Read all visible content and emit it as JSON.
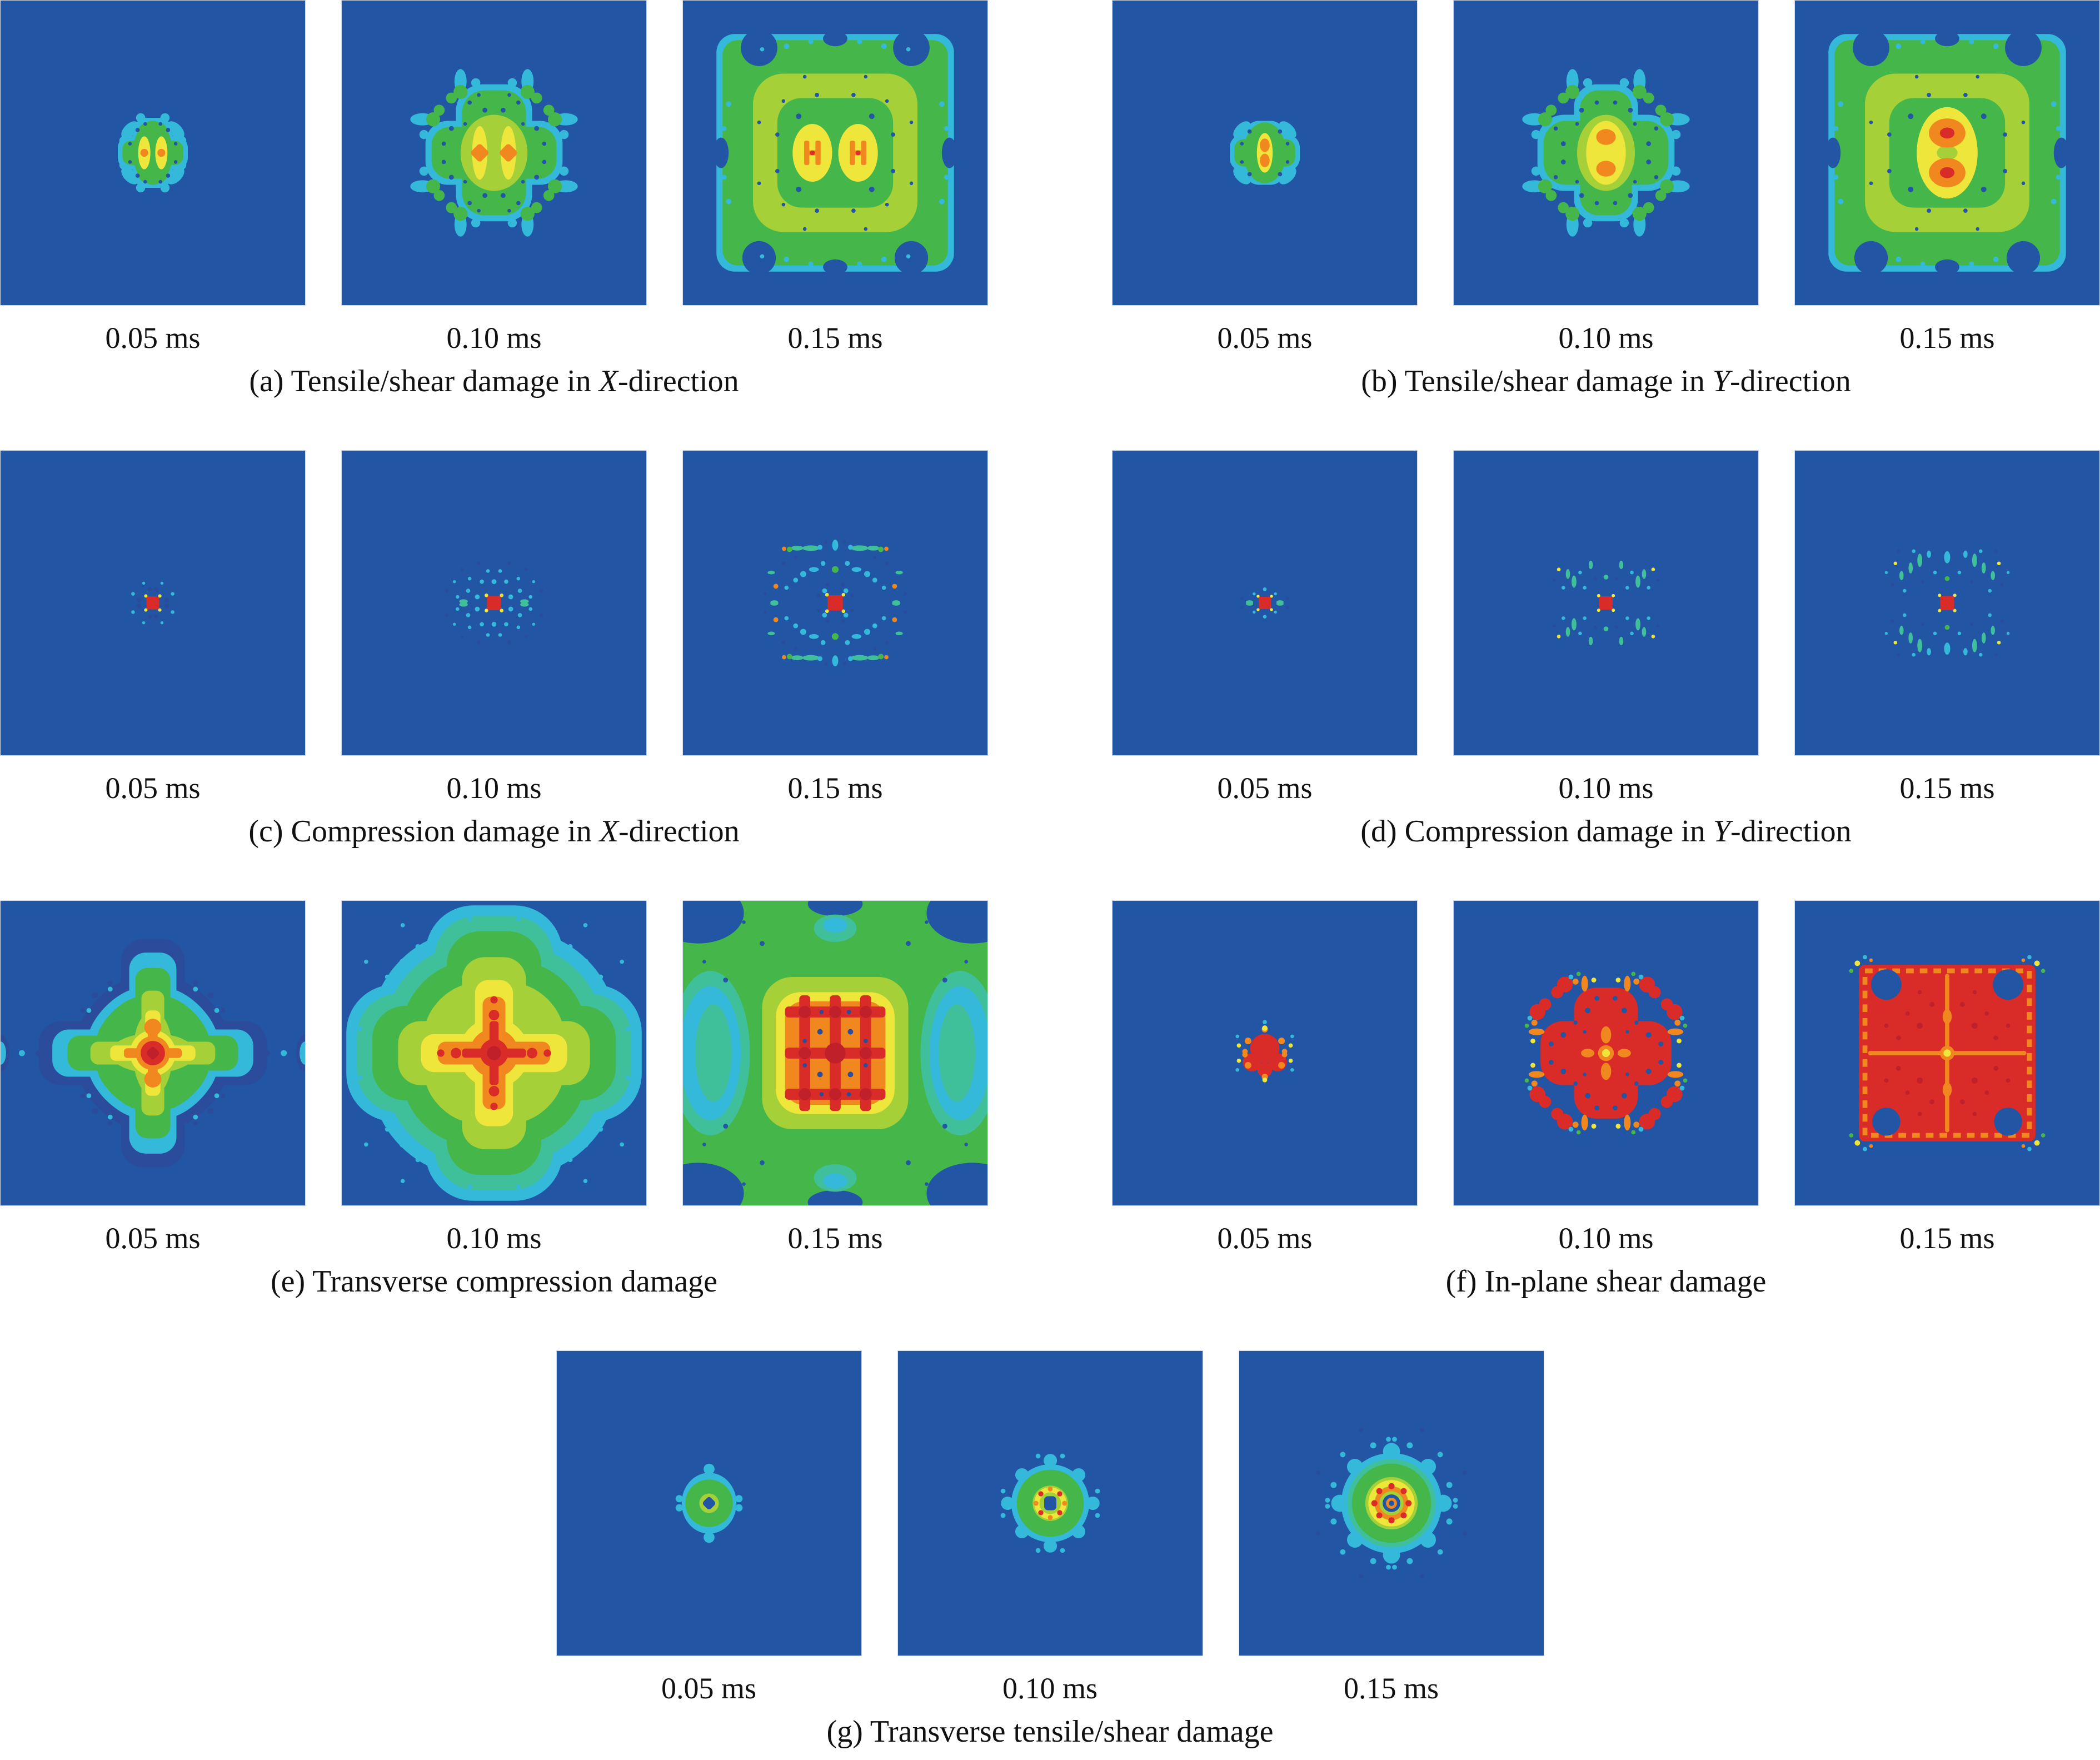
{
  "figure": {
    "times": [
      "0.05 ms",
      "0.10 ms",
      "0.15 ms"
    ],
    "groups": [
      {
        "id": "a",
        "caption_pre": "(a) Tensile/shear damage in ",
        "caption_em": "X",
        "caption_post": "-direction",
        "panels": [
          "a1",
          "a2",
          "a3"
        ]
      },
      {
        "id": "b",
        "caption_pre": "(b) Tensile/shear damage in ",
        "caption_em": "Y",
        "caption_post": "-direction",
        "panels": [
          "b1",
          "b2",
          "b3"
        ]
      },
      {
        "id": "c",
        "caption_pre": "(c) Compression damage in ",
        "caption_em": "X",
        "caption_post": "-direction",
        "panels": [
          "c1",
          "c2",
          "c3"
        ]
      },
      {
        "id": "d",
        "caption_pre": "(d) Compression damage in ",
        "caption_em": "Y",
        "caption_post": "-direction",
        "panels": [
          "d1",
          "d2",
          "d3"
        ]
      },
      {
        "id": "e",
        "caption_pre": "(e) Transverse compression damage",
        "caption_em": "",
        "caption_post": "",
        "panels": [
          "e1",
          "e2",
          "e3"
        ]
      },
      {
        "id": "f",
        "caption_pre": "(f) In-plane shear damage",
        "caption_em": "",
        "caption_post": "",
        "panels": [
          "f1",
          "f2",
          "f3"
        ]
      },
      {
        "id": "g",
        "caption_pre": "(g) Transverse tensile/shear damage",
        "caption_em": "",
        "caption_post": "",
        "panels": [
          "g1",
          "g2",
          "g3"
        ]
      }
    ],
    "colors": {
      "background": "#2355a5",
      "blue_dark": "#2b4c9b",
      "cyan": "#34b9da",
      "teal": "#3fbf9a",
      "green": "#45b74a",
      "yellow_green": "#a6d038",
      "yellow": "#efe63b",
      "orange": "#f0871f",
      "red": "#d92b28",
      "red_dark": "#c0202a",
      "text": "#111111",
      "page_background": "#ffffff"
    }
  }
}
